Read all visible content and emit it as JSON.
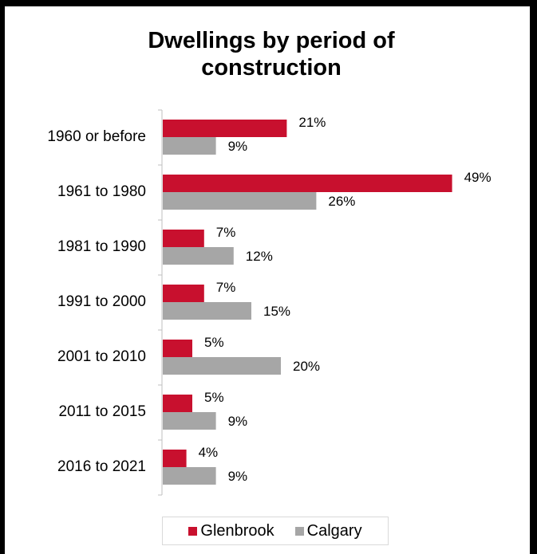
{
  "chart_data": {
    "type": "bar",
    "orientation": "horizontal",
    "title_line1": "Dwellings by period of",
    "title_line2": "construction",
    "categories": [
      "1960 or before",
      "1961 to 1980",
      "1981 to 1990",
      "1991 to 2000",
      "2001 to 2010",
      "2011 to 2015",
      "2016 to 2021"
    ],
    "series": [
      {
        "name": "Glenbrook",
        "color": "#c8102e",
        "values": [
          21,
          49,
          7,
          7,
          5,
          5,
          4
        ],
        "labels": [
          "21%",
          "49%",
          "7%",
          "7%",
          "5%",
          "5%",
          "4%"
        ]
      },
      {
        "name": "Calgary",
        "color": "#a6a6a6",
        "values": [
          9,
          26,
          12,
          15,
          20,
          9,
          9
        ],
        "labels": [
          "9%",
          "26%",
          "12%",
          "15%",
          "20%",
          "9%",
          "9%"
        ]
      }
    ],
    "xlim": [
      0,
      50
    ],
    "grid": false,
    "legend_position": "bottom"
  }
}
